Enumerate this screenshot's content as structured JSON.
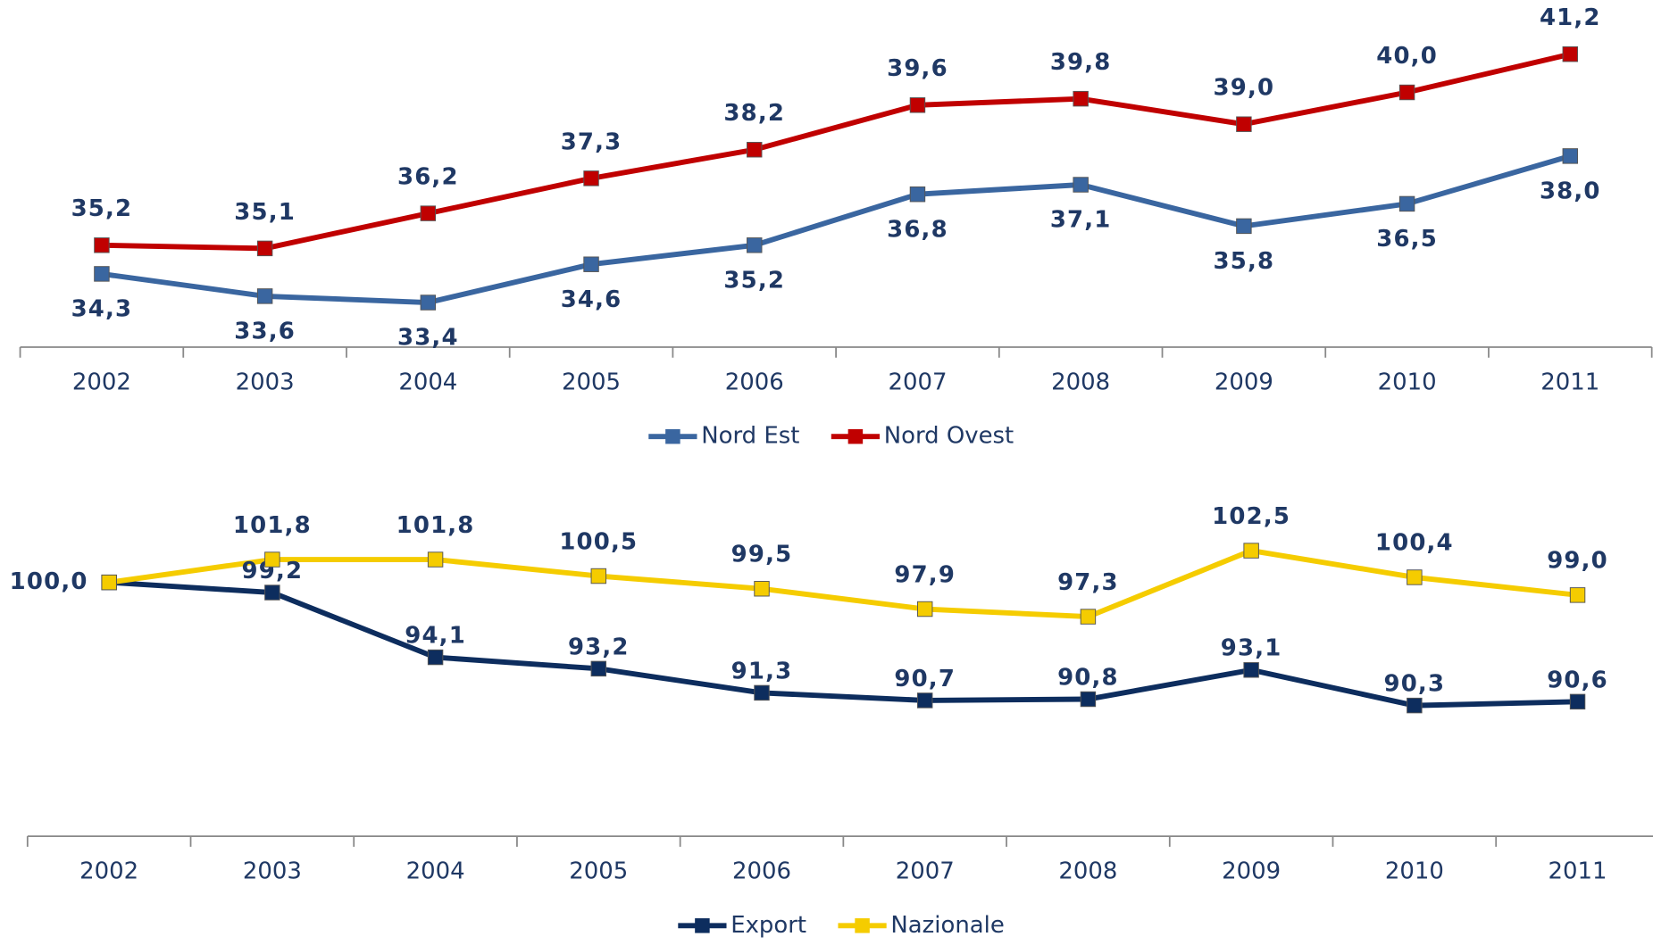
{
  "chart_data": [
    {
      "type": "line",
      "categories": [
        "2002",
        "2003",
        "2004",
        "2005",
        "2006",
        "2007",
        "2008",
        "2009",
        "2010",
        "2011"
      ],
      "series": [
        {
          "name": "Nord Est",
          "color": "#3a66a0",
          "values": [
            34.3,
            33.6,
            33.4,
            34.6,
            35.2,
            36.8,
            37.1,
            35.8,
            36.5,
            38.0
          ],
          "value_labels": [
            "34,3",
            "33,6",
            "33,4",
            "34,6",
            "35,2",
            "36,8",
            "37,1",
            "35,8",
            "36,5",
            "38,0"
          ]
        },
        {
          "name": "Nord Ovest",
          "color": "#c00000",
          "values": [
            35.2,
            35.1,
            36.2,
            37.3,
            38.2,
            39.6,
            39.8,
            39.0,
            40.0,
            41.2
          ],
          "value_labels": [
            "35,2",
            "35,1",
            "36,2",
            "37,3",
            "38,2",
            "39,6",
            "39,8",
            "39,0",
            "40,0",
            "41,2"
          ]
        }
      ],
      "ylim": [
        32,
        43
      ],
      "legend": "bottom"
    },
    {
      "type": "line",
      "categories": [
        "2002",
        "2003",
        "2004",
        "2005",
        "2006",
        "2007",
        "2008",
        "2009",
        "2010",
        "2011"
      ],
      "series": [
        {
          "name": "Export",
          "color": "#0d2d5e",
          "values": [
            100.0,
            99.2,
            94.1,
            93.2,
            91.3,
            90.7,
            90.8,
            93.1,
            90.3,
            90.6
          ],
          "value_labels": [
            null,
            "99,2",
            "94,1",
            "93,2",
            "91,3",
            "90,7",
            "90,8",
            "93,1",
            "90,3",
            "90,6"
          ]
        },
        {
          "name": "Nazionale",
          "color": "#f5cc00",
          "values": [
            100.0,
            101.8,
            101.8,
            100.5,
            99.5,
            97.9,
            97.3,
            102.5,
            100.4,
            99.0
          ],
          "value_labels": [
            "100,0",
            "101,8",
            "101,8",
            "100,5",
            "99,5",
            "97,9",
            "97,3",
            "102,5",
            "100,4",
            "99,0"
          ]
        }
      ],
      "ylim": [
        80,
        110
      ],
      "legend": "bottom"
    }
  ]
}
